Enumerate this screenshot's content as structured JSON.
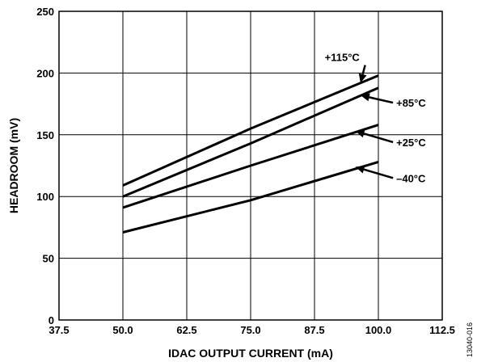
{
  "chart_data": {
    "type": "line",
    "title": "",
    "xlabel": "IDAC OUTPUT CURRENT (mA)",
    "ylabel": "HEADROOM (mV)",
    "xlim": [
      37.5,
      112.5
    ],
    "ylim": [
      0,
      250
    ],
    "x_ticks": [
      "37.5",
      "50.0",
      "62.5",
      "75.0",
      "87.5",
      "100.0",
      "112.5"
    ],
    "y_ticks": [
      "0",
      "50",
      "100",
      "150",
      "200",
      "250"
    ],
    "x_tick_values": [
      37.5,
      50,
      62.5,
      75,
      87.5,
      100,
      112.5
    ],
    "y_tick_values": [
      0,
      50,
      100,
      150,
      200,
      250
    ],
    "grid": true,
    "figure_id": "13040-016",
    "series": [
      {
        "name": "+115°C",
        "x": [
          50,
          75,
          100
        ],
        "y": [
          109,
          155,
          198
        ],
        "label_x": 89.5,
        "label_y": 213,
        "arrow_to_x": 96.5,
        "arrow_to_y": 192
      },
      {
        "name": "+85°C",
        "x": [
          50,
          75,
          100
        ],
        "y": [
          100,
          143,
          188
        ],
        "label_x": 103.5,
        "label_y": 176,
        "arrow_to_x": 96.5,
        "arrow_to_y": 182
      },
      {
        "name": "+25°C",
        "x": [
          50,
          75,
          100
        ],
        "y": [
          91,
          125,
          158
        ],
        "label_x": 103.5,
        "label_y": 144,
        "arrow_to_x": 95.5,
        "arrow_to_y": 153
      },
      {
        "name": "–40°C",
        "x": [
          50,
          75,
          100
        ],
        "y": [
          71,
          97,
          128
        ],
        "label_x": 103.5,
        "label_y": 115,
        "arrow_to_x": 95.5,
        "arrow_to_y": 124
      }
    ]
  }
}
